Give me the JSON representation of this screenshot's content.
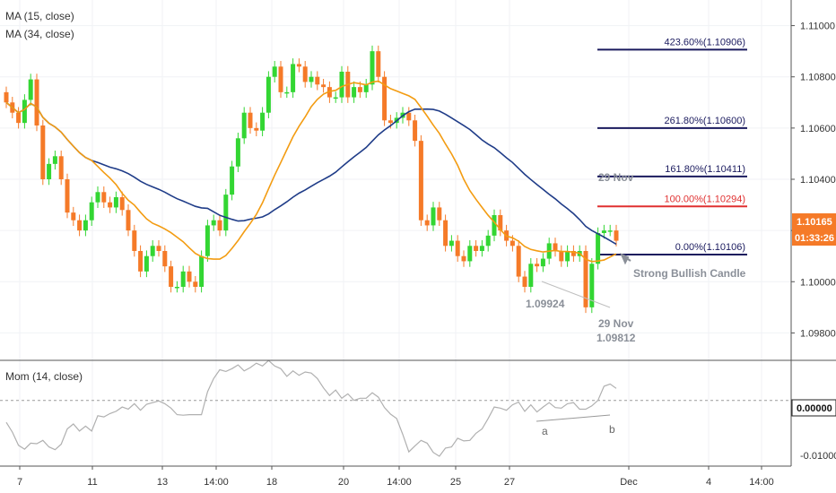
{
  "legend": {
    "ma15": "MA (15, close)",
    "ma34": "MA (34, close)",
    "mom": "Mom (14, close)"
  },
  "colors": {
    "up": "#33d633",
    "down": "#f57a28",
    "ma15": "#f39c12",
    "ma34": "#1f3c88",
    "fib": "#1a1a5e",
    "fib100": "#e03030",
    "mom": "#b0b0b0",
    "grid": "#f0f2f5"
  },
  "price_tag": {
    "value": "1.10165",
    "timer": "01:33:26"
  },
  "annotations": {
    "strong_bullish": "Strong Bullish Candle",
    "low1_value": "1.09924",
    "low2_date": "29 Nov",
    "low2_value": "1.09812",
    "high_date": "29 Nov",
    "mom_a": "a",
    "mom_b": "b"
  },
  "chart_data": {
    "type": "candlestick",
    "price_axis": {
      "ylim": [
        1.097,
        1.111
      ],
      "ticks": [
        "1.11000",
        "1.10800",
        "1.10600",
        "1.10400",
        "1.10200",
        "1.10000",
        "1.09800"
      ]
    },
    "mom_axis": {
      "ylim": [
        -0.012,
        0.007
      ],
      "ticks": [
        "0.00000",
        "-0.01000"
      ]
    },
    "x_ticks": [
      "7",
      "11",
      "13",
      "14:00",
      "18",
      "20",
      "14:00",
      "25",
      "27",
      "Dec",
      "4",
      "14:00"
    ],
    "fib_levels": [
      {
        "label": "423.60%(1.10906)",
        "value": 1.10906
      },
      {
        "label": "261.80%(1.10600)",
        "value": 1.106
      },
      {
        "label": "161.80%(1.10411)",
        "value": 1.10411
      },
      {
        "label": "100.00%(1.10294)",
        "value": 1.10294
      },
      {
        "label": "0.00%(1.10106)",
        "value": 1.10106
      }
    ],
    "closes": [
      1.107,
      1.1066,
      1.1062,
      1.1071,
      1.1079,
      1.1061,
      1.104,
      1.1046,
      1.1049,
      1.104,
      1.1027,
      1.1024,
      1.102,
      1.1024,
      1.1031,
      1.1035,
      1.1031,
      1.1029,
      1.1033,
      1.1028,
      1.102,
      1.1012,
      1.1004,
      1.101,
      1.1014,
      1.1012,
      1.1006,
      1.0998,
      1.0998,
      1.1004,
      1.1,
      1.0998,
      1.101,
      1.1022,
      1.1024,
      1.102,
      1.1034,
      1.1045,
      1.1056,
      1.1066,
      1.106,
      1.1059,
      1.1066,
      1.108,
      1.1084,
      1.1074,
      1.1074,
      1.1085,
      1.1084,
      1.1078,
      1.108,
      1.1077,
      1.1076,
      1.1072,
      1.1072,
      1.1082,
      1.1072,
      1.1076,
      1.1074,
      1.1077,
      1.109,
      1.108,
      1.1063,
      1.1062,
      1.1064,
      1.1066,
      1.1063,
      1.1055,
      1.1024,
      1.1022,
      1.1029,
      1.1024,
      1.1014,
      1.1016,
      1.101,
      1.1008,
      1.1014,
      1.1012,
      1.1014,
      1.1018,
      1.1026,
      1.102,
      1.1016,
      1.1014,
      1.1002,
      1.0998,
      1.1007,
      1.1006,
      1.1009,
      1.1015,
      1.1012,
      1.1008,
      1.1012,
      1.101,
      1.1012,
      1.099,
      1.1007,
      1.1019,
      1.102,
      1.102,
      1.1016
    ],
    "momentum": [
      -0.004,
      -0.0058,
      -0.0082,
      -0.0089,
      -0.0078,
      -0.0079,
      -0.0073,
      -0.0085,
      -0.009,
      -0.008,
      -0.0052,
      -0.0043,
      -0.0056,
      -0.0047,
      -0.0056,
      -0.0028,
      -0.003,
      -0.0024,
      -0.002,
      -0.0012,
      -0.0016,
      -0.0006,
      -0.0018,
      -0.0007,
      -0.0004,
      -0.0001,
      -0.0006,
      -0.0014,
      -0.0026,
      -0.0027,
      -0.0026,
      -0.0026,
      -0.0026,
      0.0016,
      0.004,
      0.0056,
      0.0053,
      0.0058,
      0.0065,
      0.0054,
      0.006,
      0.0068,
      0.0063,
      0.0073,
      0.0063,
      0.0058,
      0.0044,
      0.0054,
      0.0046,
      0.0052,
      0.005,
      0.004,
      0.0023,
      0.0009,
      0.0019,
      0.0004,
      0.0012,
      0.0,
      0.0004,
      0.0004,
      0.0014,
      0.0006,
      -0.0013,
      -0.0025,
      -0.0033,
      -0.0062,
      -0.0094,
      -0.0083,
      -0.0073,
      -0.0078,
      -0.0095,
      -0.0102,
      -0.0087,
      -0.0085,
      -0.0069,
      -0.0074,
      -0.0073,
      -0.006,
      -0.0052,
      -0.0033,
      -0.0012,
      -0.0014,
      -0.0018,
      -0.0008,
      -0.0003,
      -0.002,
      -0.0008,
      -0.0021,
      -0.0012,
      -0.0004,
      -0.0013,
      -0.0014,
      -0.0006,
      -0.0004,
      -0.0016,
      -0.0016,
      -0.001,
      0.0,
      0.0026,
      0.003,
      0.0022
    ]
  }
}
